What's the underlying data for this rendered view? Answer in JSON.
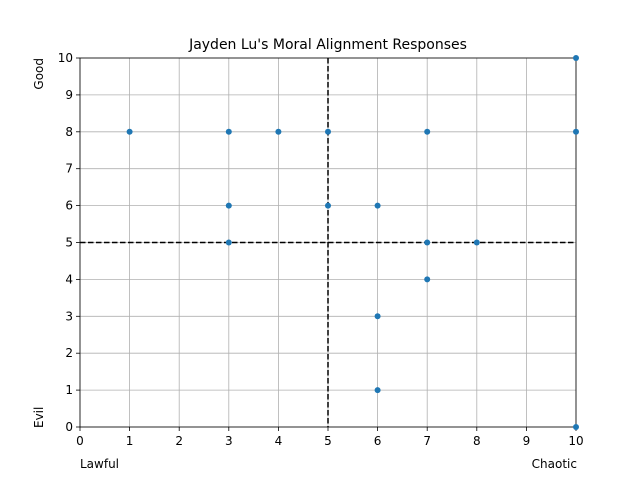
{
  "chart_data": {
    "type": "scatter",
    "title": "Jayden Lu's Moral Alignment Responses",
    "xlim": [
      0,
      10
    ],
    "ylim": [
      0,
      10
    ],
    "xticks": [
      "0",
      "1",
      "2",
      "3",
      "4",
      "5",
      "6",
      "7",
      "8",
      "9",
      "10"
    ],
    "yticks": [
      "0",
      "1",
      "2",
      "3",
      "4",
      "5",
      "6",
      "7",
      "8",
      "9",
      "10"
    ],
    "x_left_label": "Lawful",
    "x_right_label": "Chaotic",
    "y_top_label": "Good",
    "y_bottom_label": "Evil",
    "grid": true,
    "reference_lines": {
      "x": 5,
      "y": 5,
      "style": "dashed",
      "color": "#000000"
    },
    "marker_color": "#1f77b4",
    "points": [
      {
        "x": 1,
        "y": 8
      },
      {
        "x": 3,
        "y": 8
      },
      {
        "x": 4,
        "y": 8
      },
      {
        "x": 5,
        "y": 8
      },
      {
        "x": 7,
        "y": 8
      },
      {
        "x": 10,
        "y": 8
      },
      {
        "x": 10,
        "y": 10
      },
      {
        "x": 3,
        "y": 6
      },
      {
        "x": 5,
        "y": 6
      },
      {
        "x": 6,
        "y": 6
      },
      {
        "x": 3,
        "y": 5
      },
      {
        "x": 7,
        "y": 5
      },
      {
        "x": 8,
        "y": 5
      },
      {
        "x": 7,
        "y": 4
      },
      {
        "x": 6,
        "y": 3
      },
      {
        "x": 6,
        "y": 1
      },
      {
        "x": 10,
        "y": 0
      }
    ]
  }
}
